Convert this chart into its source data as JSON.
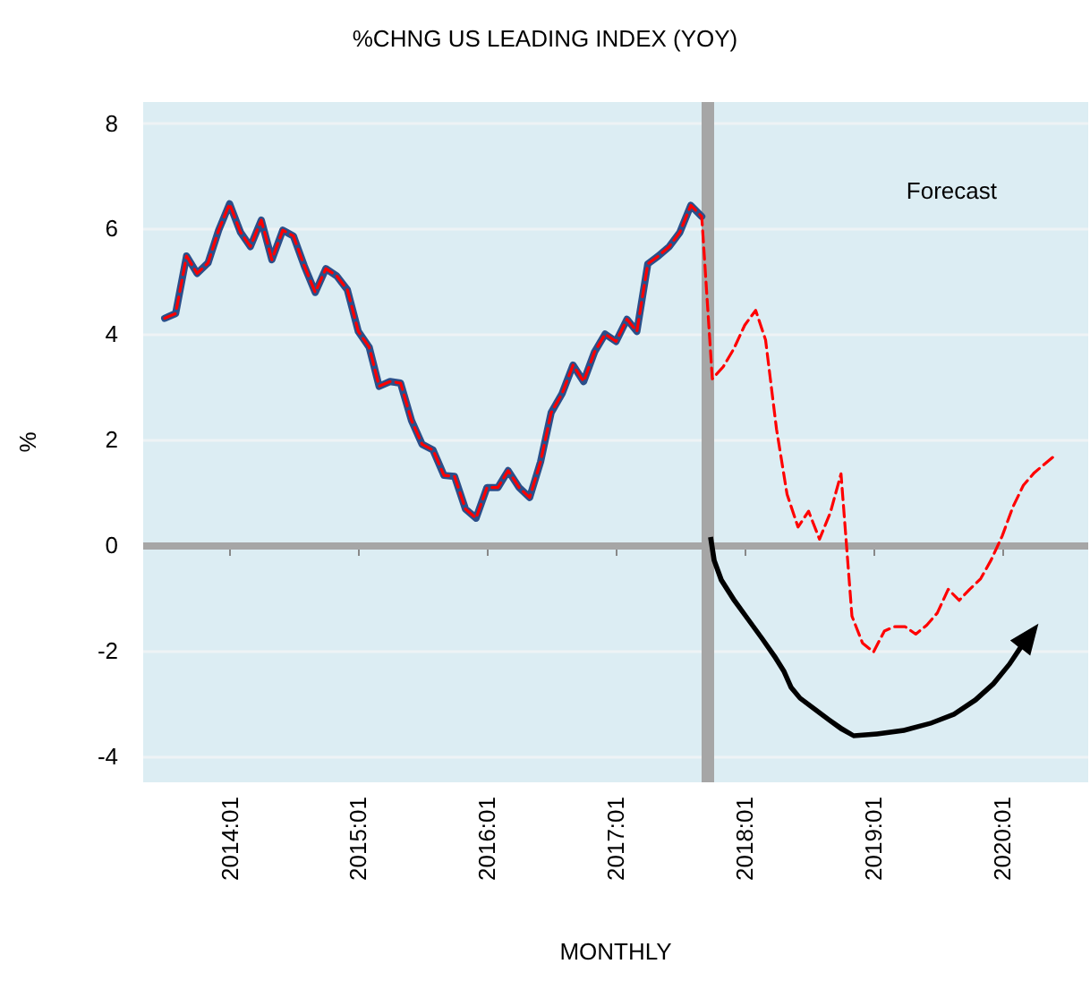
{
  "chart_data": {
    "type": "line",
    "title": "%CHNG US LEADING INDEX (YOY)",
    "xlabel": "MONTHLY",
    "ylabel": "%",
    "x": [
      "2013-07",
      "2013-08",
      "2013-09",
      "2013-10",
      "2013-11",
      "2013-12",
      "2014-01",
      "2014-02",
      "2014-03",
      "2014-04",
      "2014-05",
      "2014-06",
      "2014-07",
      "2014-08",
      "2014-09",
      "2014-10",
      "2014-11",
      "2014-12",
      "2015-01",
      "2015-02",
      "2015-03",
      "2015-04",
      "2015-05",
      "2015-06",
      "2015-07",
      "2015-08",
      "2015-09",
      "2015-10",
      "2015-11",
      "2015-12",
      "2016-01",
      "2016-02",
      "2016-03",
      "2016-04",
      "2016-05",
      "2016-06",
      "2016-07",
      "2016-08",
      "2016-09",
      "2016-10",
      "2016-11",
      "2016-12",
      "2017-01",
      "2017-02",
      "2017-03",
      "2017-04",
      "2017-05",
      "2017-06",
      "2017-07",
      "2017-08",
      "2017-09",
      "2017-10",
      "2017-11",
      "2017-12",
      "2018-01",
      "2018-02",
      "2018-03",
      "2018-04",
      "2018-05",
      "2018-06",
      "2018-07",
      "2018-08",
      "2018-09",
      "2018-10",
      "2018-11",
      "2018-12",
      "2019-01",
      "2019-02",
      "2019-03",
      "2019-04",
      "2019-05",
      "2019-06",
      "2019-07",
      "2019-08",
      "2019-09",
      "2019-10",
      "2019-11",
      "2019-12",
      "2020-01",
      "2020-02",
      "2020-03",
      "2020-04",
      "2020-05",
      "2020-06"
    ],
    "series": [
      {
        "color": "#2b4f8a",
        "line_style": "solid",
        "values": [
          4.3,
          4.39,
          5.48,
          5.15,
          5.35,
          5.97,
          6.47,
          5.93,
          5.66,
          6.16,
          5.41,
          5.97,
          5.86,
          5.29,
          4.79,
          5.24,
          5.1,
          4.84,
          4.05,
          3.75,
          3.01,
          3.1,
          3.07,
          2.36,
          1.91,
          1.8,
          1.32,
          1.3,
          0.68,
          0.51,
          1.09,
          1.09,
          1.41,
          1.09,
          0.9,
          1.58,
          2.51,
          2.87,
          3.41,
          3.1,
          3.66,
          4.0,
          3.86,
          4.28,
          4.05,
          5.33,
          5.48,
          5.66,
          5.93,
          6.44,
          6.23,
          null,
          null,
          null,
          null,
          null,
          null,
          null,
          null,
          null,
          null,
          null,
          null,
          null,
          null,
          null,
          null,
          null,
          null,
          null,
          null,
          null,
          null,
          null,
          null,
          null,
          null,
          null,
          null,
          null,
          null,
          null,
          null,
          null
        ]
      },
      {
        "color": "#ff0000",
        "line_style": "dashed",
        "values": [
          4.3,
          4.39,
          5.48,
          5.15,
          5.35,
          5.97,
          6.47,
          5.93,
          5.66,
          6.16,
          5.41,
          5.97,
          5.86,
          5.29,
          4.79,
          5.24,
          5.1,
          4.84,
          4.05,
          3.75,
          3.01,
          3.1,
          3.07,
          2.36,
          1.91,
          1.8,
          1.32,
          1.3,
          0.68,
          0.51,
          1.09,
          1.09,
          1.41,
          1.09,
          0.9,
          1.58,
          2.51,
          2.87,
          3.41,
          3.1,
          3.66,
          4.0,
          3.86,
          4.28,
          4.05,
          5.33,
          5.48,
          5.66,
          5.93,
          6.44,
          6.23,
          3.15,
          3.38,
          3.72,
          4.17,
          4.45,
          3.89,
          2.2,
          0.96,
          0.34,
          0.64,
          0.11,
          0.62,
          1.35,
          -1.35,
          -1.86,
          -2.03,
          -1.63,
          -1.55,
          -1.55,
          -1.69,
          -1.52,
          -1.29,
          -0.84,
          -1.05,
          -0.84,
          -0.64,
          -0.28,
          0.17,
          0.73,
          1.13,
          1.37,
          1.54,
          1.71
        ]
      }
    ],
    "xlim": [
      "2013-05",
      "2020-09"
    ],
    "xticks": [
      {
        "value": "2014-01",
        "label": "2014:01"
      },
      {
        "value": "2015-01",
        "label": "2015:01"
      },
      {
        "value": "2016-01",
        "label": "2016:01"
      },
      {
        "value": "2017-01",
        "label": "2017:01"
      },
      {
        "value": "2018-01",
        "label": "2018:01"
      },
      {
        "value": "2019-01",
        "label": "2019:01"
      },
      {
        "value": "2020-01",
        "label": "2020:01"
      }
    ],
    "ylim": [
      -4.5,
      8.4
    ],
    "yticks": [
      -4,
      -2,
      0,
      2,
      4,
      6,
      8
    ],
    "ref_lines": [
      {
        "axis": "y",
        "value": 0,
        "color": "#a6a6a6"
      },
      {
        "axis": "x",
        "value": "2017-09-15",
        "color": "#a6a6a6"
      }
    ],
    "annotations": [
      "Forecast"
    ],
    "grid": "y",
    "marker": "none"
  }
}
